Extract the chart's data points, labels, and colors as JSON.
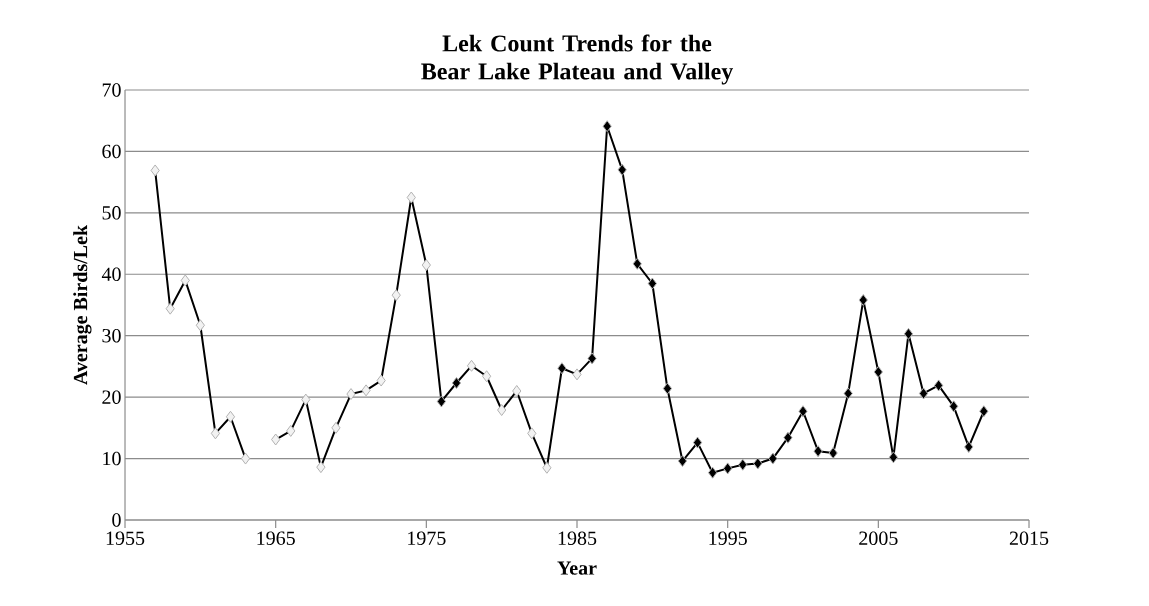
{
  "chart_data": {
    "type": "line",
    "title": "Lek Count Trends for the Bear Lake Plateau and Valley",
    "xlabel": "Year",
    "ylabel": "Average Birds/Lek",
    "x": [
      1957,
      1958,
      1959,
      1960,
      1961,
      1962,
      1963,
      1964,
      1965,
      1966,
      1967,
      1968,
      1969,
      1970,
      1971,
      1972,
      1973,
      1974,
      1975,
      1976,
      1977,
      1978,
      1979,
      1980,
      1981,
      1982,
      1983,
      1984,
      1985,
      1986,
      1987,
      1988,
      1989,
      1990,
      1991,
      1992,
      1993,
      1994,
      1995,
      1996,
      1997,
      1998,
      1999,
      2000,
      2001,
      2002,
      2003,
      2004,
      2005,
      2006,
      2007,
      2008,
      2009,
      2010,
      2011,
      2012
    ],
    "series": [
      {
        "color": "#000000",
        "values": [
          56.9,
          34.4,
          39.0,
          31.7,
          14.1,
          16.8,
          10.0,
          null,
          13.1,
          14.5,
          19.6,
          8.6,
          15.0,
          20.5,
          21.1,
          22.7,
          36.6,
          52.5,
          41.5,
          19.3,
          22.3,
          25.1,
          23.4,
          17.9,
          21.0,
          14.1,
          8.5,
          24.7,
          23.7,
          26.3,
          64.1,
          57.0,
          41.7,
          38.5,
          21.4,
          9.6,
          12.6,
          7.7,
          8.4,
          9.0,
          9.2,
          10.0,
          13.4,
          17.7,
          11.2,
          10.9,
          20.6,
          35.8,
          24.1,
          10.2,
          30.3,
          20.6,
          21.9,
          18.5,
          11.9,
          17.7
        ],
        "colors": [
          "#f2f2f2",
          "#f2f2f2",
          "#f2f2f2",
          "#f2f2f2",
          "#f2f2f2",
          "#f2f2f2",
          "#f2f2f2",
          "#f2f2f2",
          "#f2f2f2",
          "#f2f2f2",
          "#f2f2f2",
          "#f2f2f2",
          "#f2f2f2",
          "#f2f2f2",
          "#f2f2f2",
          "#f2f2f2",
          "#f2f2f2",
          "#f2f2f2",
          "#f2f2f2",
          "#000000",
          "#000000",
          "#f2f2f2",
          "#f2f2f2",
          "#f2f2f2",
          "#f2f2f2",
          "#f2f2f2",
          "#f2f2f2",
          "#000000",
          "#f2f2f2",
          "#000000",
          "#000000",
          "#000000",
          "#000000",
          "#000000",
          "#000000",
          "#000000",
          "#000000",
          "#000000",
          "#000000",
          "#000000",
          "#000000",
          "#000000",
          "#000000",
          "#000000",
          "#000000",
          "#000000",
          "#000000",
          "#000000",
          "#000000",
          "#000000",
          "#000000",
          "#000000",
          "#000000",
          "#000000",
          "#000000",
          "#000000"
        ]
      }
    ],
    "xlim": [
      1955,
      2015
    ],
    "xticks": [
      1955,
      1965,
      1975,
      1985,
      1995,
      2005,
      2015
    ],
    "ylim": [
      0,
      70
    ],
    "yticks": [
      0,
      10,
      20,
      30,
      40,
      50,
      60,
      70
    ],
    "grid": "y",
    "marker": "diamond",
    "line_style": "solid"
  }
}
